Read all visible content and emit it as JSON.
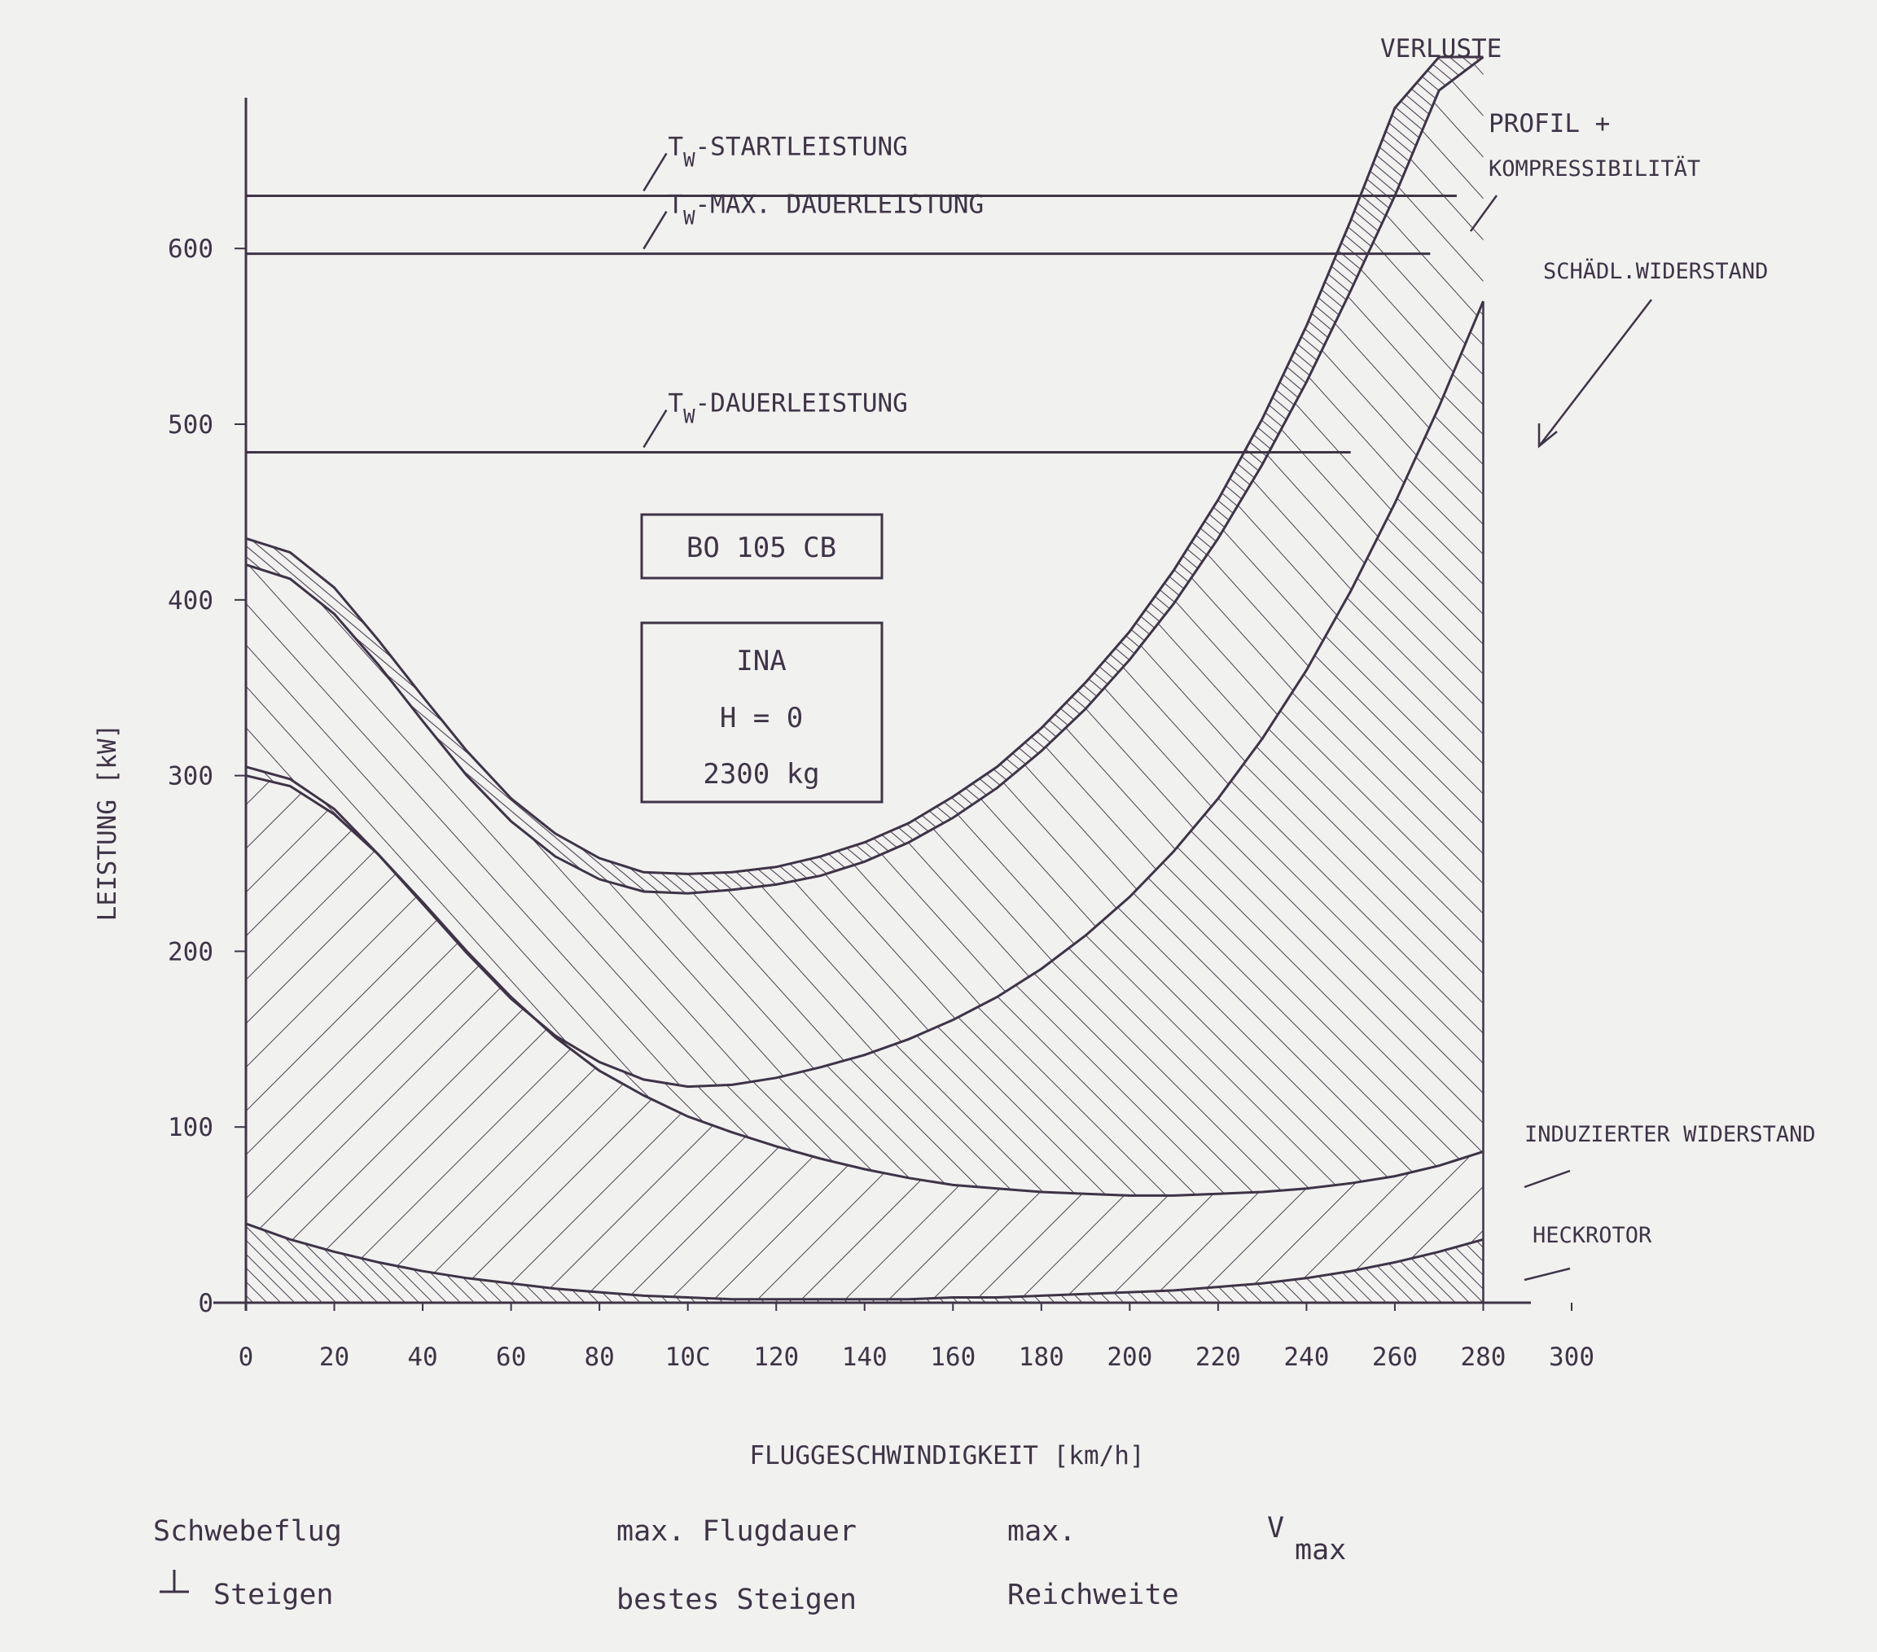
{
  "chart_data": {
    "type": "area",
    "xlabel": "FLUGGESCHWINDIGKEIT [km/h]",
    "ylabel": "LEISTUNG [kW]",
    "xlim": [
      0,
      300
    ],
    "ylim": [
      0,
      700
    ],
    "x_ticks": [
      "0",
      "20",
      "40",
      "60",
      "80",
      "10C",
      "120",
      "140",
      "160",
      "180",
      "200",
      "220",
      "240",
      "260",
      "280",
      "300"
    ],
    "y_ticks": [
      "0",
      "100",
      "200",
      "300",
      "400",
      "500",
      "600"
    ],
    "grid": false,
    "reference_lines": [
      {
        "label_prefix": "T",
        "label_sub": "W",
        "label_rest": "-STARTLEISTUNG",
        "y": 630,
        "x_end": 274
      },
      {
        "label_prefix": "T",
        "label_sub": "W",
        "label_rest": "-MAX. DAUERLEISTUNG",
        "y": 597,
        "x_end": 268
      },
      {
        "label_prefix": "T",
        "label_sub": "W",
        "label_rest": "-DAUERLEISTUNG",
        "y": 484,
        "x_end": 250
      }
    ],
    "x": [
      0,
      10,
      20,
      30,
      40,
      50,
      60,
      70,
      80,
      90,
      100,
      110,
      120,
      130,
      140,
      150,
      160,
      170,
      180,
      190,
      200,
      210,
      220,
      230,
      240,
      250,
      260,
      270,
      280
    ],
    "series": [
      {
        "name": "HECKROTOR",
        "values": [
          45,
          36,
          29,
          23,
          18,
          14,
          11,
          8,
          6,
          4,
          3,
          2,
          2,
          2,
          2,
          2,
          3,
          3,
          4,
          5,
          6,
          7,
          9,
          11,
          14,
          18,
          23,
          29,
          36
        ]
      },
      {
        "name": "INDUZIERTER WIDERSTAND",
        "values": [
          300,
          294,
          278,
          255,
          228,
          200,
          174,
          151,
          132,
          118,
          106,
          97,
          89,
          82,
          76,
          71,
          67,
          65,
          63,
          62,
          61,
          61,
          62,
          63,
          65,
          68,
          72,
          78,
          86
        ]
      },
      {
        "name": "SCHÄDL.WIDERSTAND",
        "values": [
          305,
          298,
          281,
          255,
          227,
          199,
          173,
          152,
          137,
          127,
          123,
          124,
          128,
          134,
          141,
          150,
          161,
          174,
          190,
          209,
          231,
          257,
          287,
          321,
          360,
          405,
          455,
          510,
          570
        ]
      },
      {
        "name": "PROFIL + KOMPRESSIBILITÄT",
        "values": [
          420,
          412,
          392,
          363,
          331,
          300,
          274,
          254,
          241,
          234,
          233,
          235,
          238,
          243,
          251,
          262,
          276,
          293,
          314,
          338,
          366,
          398,
          435,
          477,
          524,
          576,
          630,
          690,
          760
        ]
      },
      {
        "name": "VERLUSTE",
        "values": [
          435,
          427,
          407,
          377,
          345,
          314,
          287,
          267,
          253,
          245,
          244,
          245,
          248,
          254,
          262,
          273,
          288,
          305,
          327,
          353,
          382,
          417,
          457,
          503,
          556,
          616,
          680,
          748,
          820
        ]
      }
    ],
    "annotations": {
      "verluste": "VERLUSTE",
      "profil_line1": "PROFIL +",
      "profil_line2": "KOMPRESSIBILITÄT",
      "schaedl": "SCHÄDL.WIDERSTAND",
      "induziert": "INDUZIERTER WIDERSTAND",
      "heckrotor": "HECKROTOR"
    },
    "box1": "BO 105 CB",
    "box2": [
      "INA",
      "H = 0",
      "2300 kg"
    ]
  },
  "footer": {
    "col1_line1": "Schwebeflug",
    "col1_line2": "Steigen",
    "col2_line1": "max. Flugdauer",
    "col2_line2": "bestes Steigen",
    "col3_line1": "max.",
    "col3_line2": "Reichweite",
    "col4_main": "V",
    "col4_sub": "max"
  }
}
